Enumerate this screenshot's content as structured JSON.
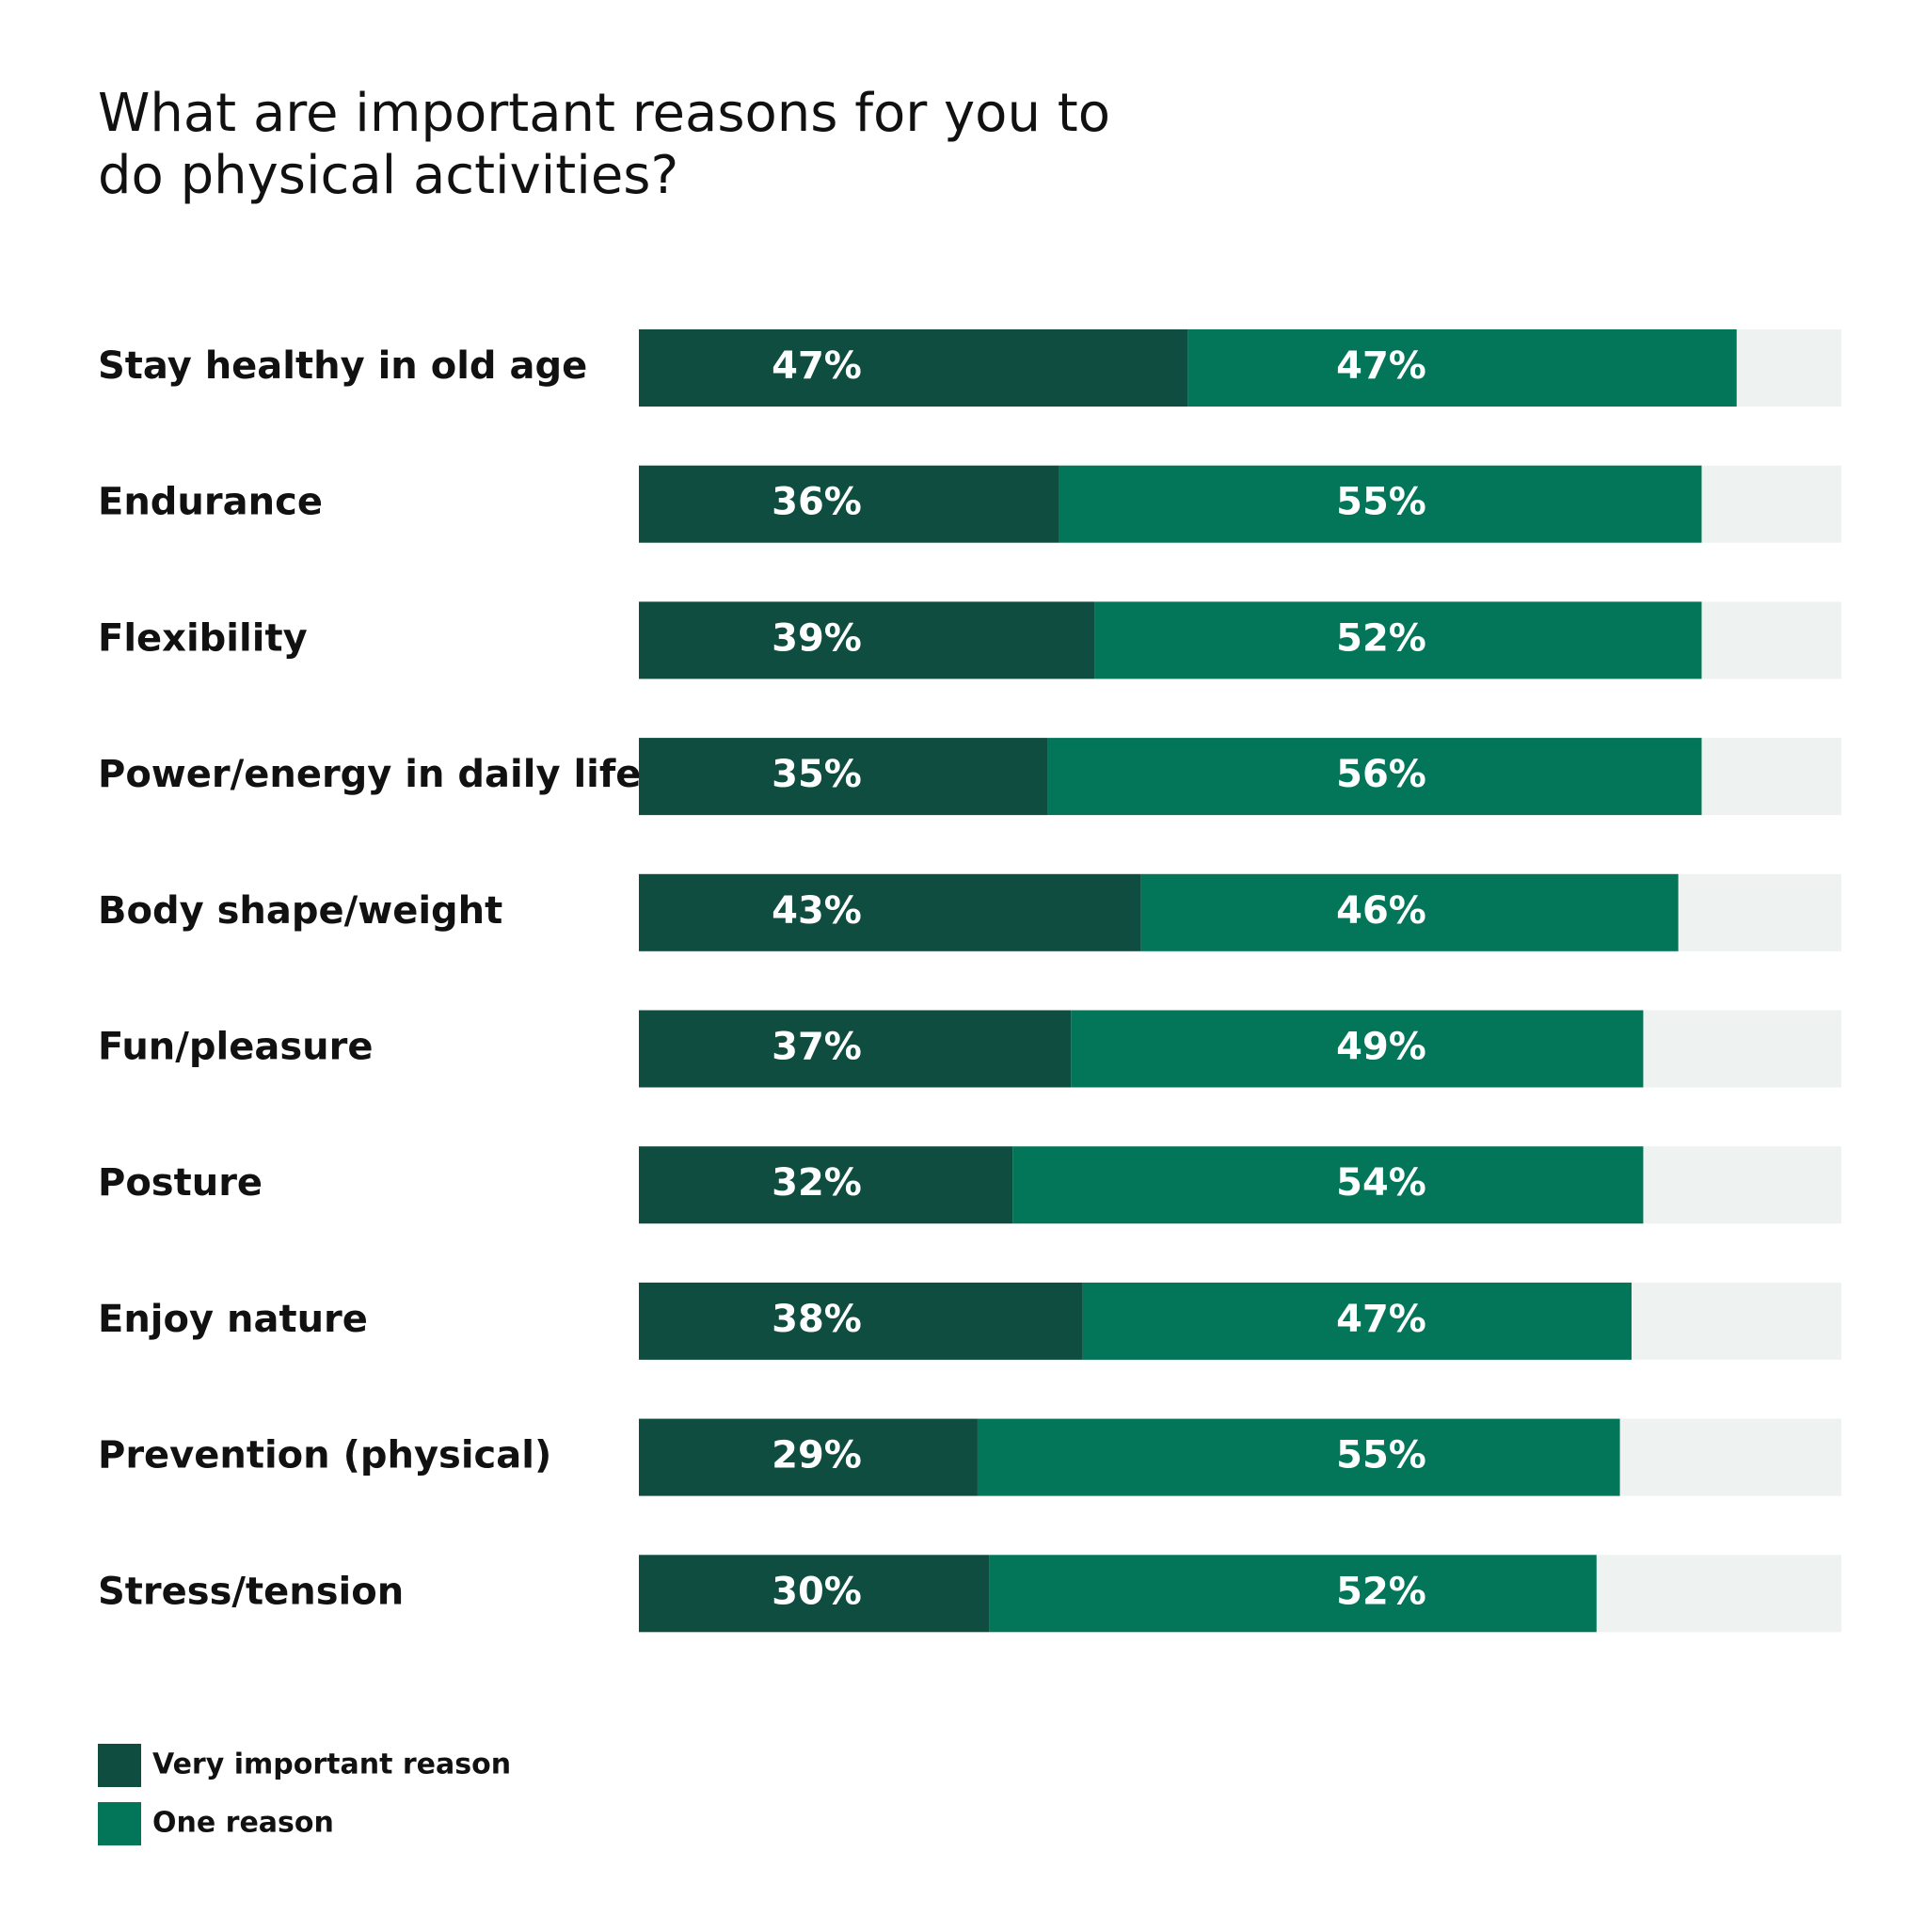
{
  "chart_data": {
    "type": "bar",
    "orientation": "horizontal",
    "stacked": true,
    "title": "What are important reasons for you to do physical activities?",
    "categories": [
      "Stay healthy in old age",
      "Endurance",
      "Flexibility",
      "Power/energy in daily life",
      "Body shape/weight",
      "Fun/pleasure",
      "Posture",
      "Enjoy nature",
      "Prevention (physical)",
      "Stress/tension"
    ],
    "series": [
      {
        "name": "Very important reason",
        "values": [
          47,
          36,
          39,
          35,
          43,
          37,
          32,
          38,
          29,
          30
        ],
        "color": "#0e4d40"
      },
      {
        "name": "One reason",
        "values": [
          47,
          55,
          52,
          56,
          46,
          49,
          54,
          47,
          55,
          52
        ],
        "color": "#03765a"
      }
    ],
    "track_color": "#eef2f0",
    "value_suffix": "%",
    "xlim": [
      0,
      100
    ],
    "grid": false,
    "legend_position": "bottom-left"
  }
}
